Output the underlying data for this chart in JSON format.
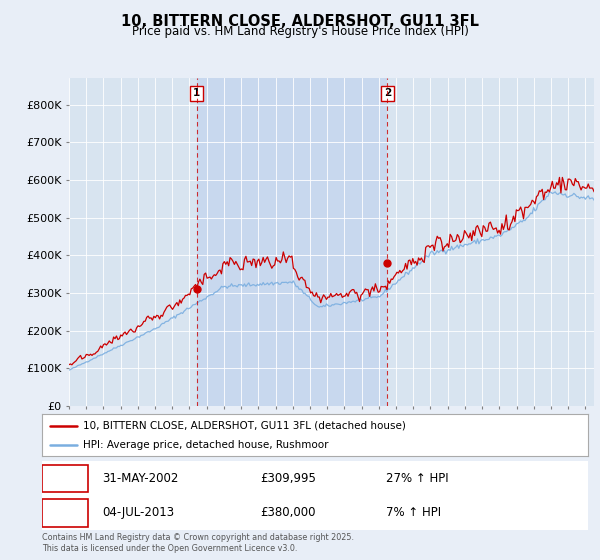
{
  "title": "10, BITTERN CLOSE, ALDERSHOT, GU11 3FL",
  "subtitle": "Price paid vs. HM Land Registry's House Price Index (HPI)",
  "ylim": [
    0,
    870000
  ],
  "yticks": [
    0,
    100000,
    200000,
    300000,
    400000,
    500000,
    600000,
    700000,
    800000
  ],
  "ytick_labels": [
    "£0",
    "£100K",
    "£200K",
    "£300K",
    "£400K",
    "£500K",
    "£600K",
    "£700K",
    "£800K"
  ],
  "xlim_start": 1995,
  "xlim_end": 2025.5,
  "background_color": "#e8eef7",
  "plot_bg_color": "#d8e4f0",
  "shade_color": "#c8d8ee",
  "grid_color": "#ffffff",
  "red_color": "#cc0000",
  "blue_color": "#7aaee0",
  "dashed_color": "#cc0000",
  "transaction1_x": 2002.42,
  "transaction1_y": 309995,
  "transaction2_x": 2013.5,
  "transaction2_y": 380000,
  "transaction1_date": "31-MAY-2002",
  "transaction1_price": "£309,995",
  "transaction1_hpi": "27% ↑ HPI",
  "transaction2_date": "04-JUL-2013",
  "transaction2_price": "£380,000",
  "transaction2_hpi": "7% ↑ HPI",
  "legend_line1": "10, BITTERN CLOSE, ALDERSHOT, GU11 3FL (detached house)",
  "legend_line2": "HPI: Average price, detached house, Rushmoor",
  "footer": "Contains HM Land Registry data © Crown copyright and database right 2025.\nThis data is licensed under the Open Government Licence v3.0."
}
